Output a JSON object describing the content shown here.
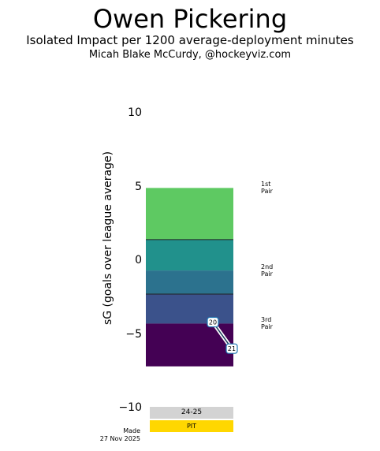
{
  "header": {
    "title": "Owen Pickering",
    "subtitle": "Isolated Impact per 1200 average-deployment minutes",
    "author": "Micah Blake McCurdy, @hockeyviz.com"
  },
  "footer": {
    "season": "24-25",
    "team": "PIT",
    "made_line1": "Made",
    "made_line2": "27 Nov 2025"
  },
  "colors": {
    "band_1st": "#5ec962",
    "band_2nd_upper": "#21918c",
    "band_2nd_lower": "#2c728e",
    "band_3rd_upper": "#3b528b",
    "band_3rd_lower": "#440154",
    "season_bar": "#d3d3d3",
    "team_bar": "#ffd700",
    "marker_edge": "#1f77b4"
  },
  "chart_data": {
    "type": "bar",
    "ylabel": "sG (goals over league average)",
    "ylim": [
      -12,
      12
    ],
    "yticks": [
      10,
      5,
      0,
      -5,
      -10
    ],
    "ytick_labels": [
      "10",
      "5",
      "0",
      "−5",
      "−10"
    ],
    "bands": [
      {
        "label_line1": "1st",
        "label_line2": "Pair",
        "bottom": 1.4,
        "top": 4.9,
        "color_key": "band_1st"
      },
      {
        "label_line1": "2nd",
        "label_line2": "Pair",
        "bottom": -0.7,
        "top": 1.4,
        "color_key": "band_2nd_upper",
        "section": "2nd"
      },
      {
        "bottom": -2.3,
        "top": -0.7,
        "color_key": "band_2nd_lower"
      },
      {
        "label_line1": "3rd",
        "label_line2": "Pair",
        "bottom": -4.3,
        "top": -2.3,
        "color_key": "band_3rd_upper"
      },
      {
        "bottom": -7.2,
        "top": -4.3,
        "color_key": "band_3rd_lower"
      }
    ],
    "pair_labels": [
      {
        "line1": "1st",
        "line2": "Pair",
        "y": 4.9
      },
      {
        "line1": "2nd",
        "line2": "Pair",
        "y": -0.7
      },
      {
        "line1": "3rd",
        "line2": "Pair",
        "y": -4.3
      }
    ],
    "points": [
      {
        "label": "20",
        "value": -4.2
      },
      {
        "label": "21",
        "value": -6.0
      }
    ]
  }
}
